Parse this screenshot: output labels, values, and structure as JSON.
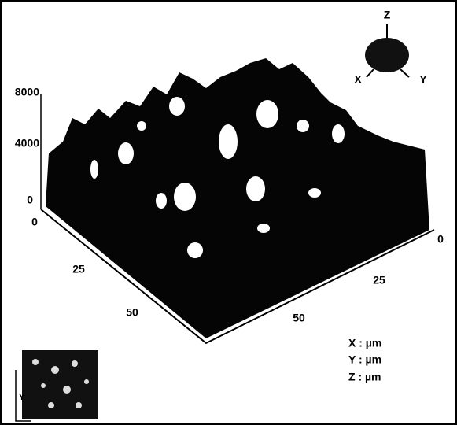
{
  "figure": {
    "z_ticks": [
      "8000",
      "4000",
      "0"
    ],
    "x_ticks": [
      "0",
      "25",
      "50"
    ],
    "y_ticks": [
      "0",
      "25",
      "50"
    ],
    "orientation": {
      "z": "Z",
      "x": "X",
      "y": "Y"
    },
    "units": [
      "X : µm",
      "Y : µm",
      "Z : µm"
    ],
    "inset_label": "Y"
  }
}
